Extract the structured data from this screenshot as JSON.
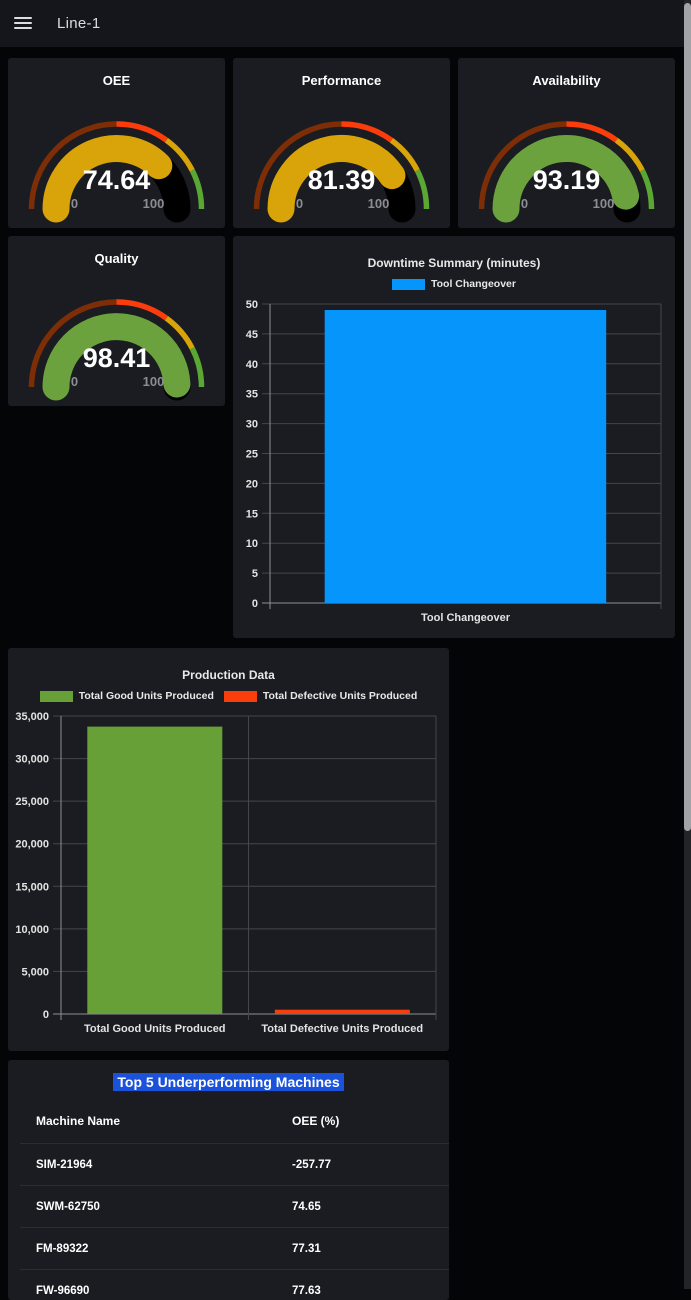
{
  "topbar": {
    "title": "Line-1",
    "menu_icon": "hamburger-icon"
  },
  "colors": {
    "page_bg": "#040507",
    "topbar_bg": "#15161c",
    "panel_bg": "#1a1c22",
    "grid": "#45464b",
    "axis": "#8e8f93",
    "gauge_bg": "#000000",
    "table_title_highlight": "#1a53d9",
    "scroll_thumb": "#a2a3a6"
  },
  "gauges": [
    {
      "title": "OEE",
      "value": "74.64",
      "pct": 74.64,
      "min": "0",
      "max": "100",
      "fill": "#d9a40a"
    },
    {
      "title": "Performance",
      "value": "81.39",
      "pct": 81.39,
      "min": "0",
      "max": "100",
      "fill": "#d9a40a"
    },
    {
      "title": "Availability",
      "value": "93.19",
      "pct": 93.19,
      "min": "0",
      "max": "100",
      "fill": "#6ba23d"
    },
    {
      "title": "Quality",
      "value": "98.41",
      "pct": 98.41,
      "min": "0",
      "max": "100",
      "fill": "#6ba23d"
    }
  ],
  "gauge_thresholds": [
    {
      "from": 0,
      "to": 50,
      "color": "#7d2e06"
    },
    {
      "from": 50,
      "to": 70,
      "color": "#fb3c0b"
    },
    {
      "from": 70,
      "to": 85,
      "color": "#d9a40a"
    },
    {
      "from": 85,
      "to": 100,
      "color": "#5aa733"
    }
  ],
  "chart_data": [
    {
      "type": "bar",
      "title": "Downtime Summary (minutes)",
      "categories": [
        "Tool Changeover"
      ],
      "values": [
        49
      ],
      "bar_colors": [
        "#0696fb"
      ],
      "legend": [
        {
          "label": "Tool Changeover",
          "color": "#0696fb"
        }
      ],
      "legend_position": "top",
      "grid": true,
      "ylim": [
        0,
        50
      ],
      "ytick_step": 5,
      "ytick_format": "plain"
    },
    {
      "type": "bar",
      "title": "Production Data",
      "categories": [
        "Total Good Units Produced",
        "Total Defective Units Produced"
      ],
      "values": [
        33750,
        500
      ],
      "bar_colors": [
        "#67a036",
        "#f93e0c"
      ],
      "legend": [
        {
          "label": "Total Good Units Produced",
          "color": "#67a036"
        },
        {
          "label": "Total Defective Units Produced",
          "color": "#f93e0c"
        }
      ],
      "legend_position": "top",
      "grid": true,
      "ylim": [
        0,
        35000
      ],
      "ytick_step": 5000,
      "ytick_format": "comma"
    }
  ],
  "table": {
    "title": "Top 5 Underperforming Machines",
    "columns": [
      "Machine Name",
      "OEE (%)"
    ],
    "rows": [
      {
        "machine": "SIM-21964",
        "oee": "-257.77"
      },
      {
        "machine": "SWM-62750",
        "oee": "74.65"
      },
      {
        "machine": "FM-89322",
        "oee": "77.31"
      },
      {
        "machine": "FW-96690",
        "oee": "77.63"
      }
    ]
  }
}
